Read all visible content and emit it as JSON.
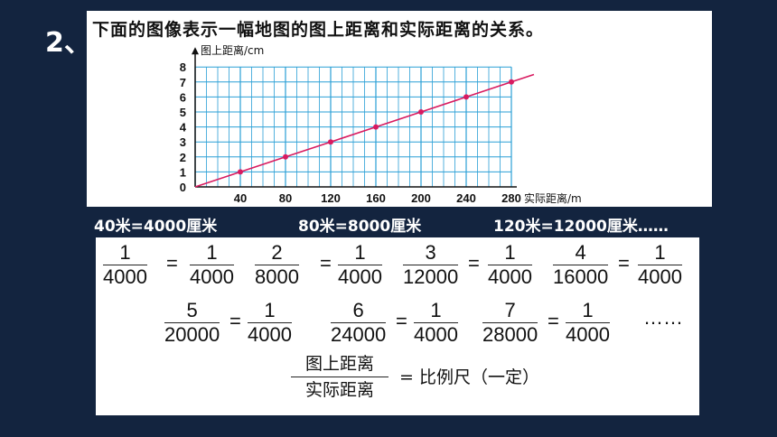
{
  "question_number": "2、",
  "title": "下面的图像表示一幅地图的图上距离和实际距离的关系。",
  "chart_data": {
    "type": "line",
    "ylabel": "图上距离/cm",
    "xlabel": "实际距离/m",
    "x_ticks": [
      "40",
      "80",
      "120",
      "160",
      "200",
      "240",
      "280"
    ],
    "y_ticks": [
      "0",
      "1",
      "2",
      "3",
      "4",
      "5",
      "6",
      "7",
      "8"
    ],
    "xlim": [
      0,
      280
    ],
    "ylim": [
      0,
      8
    ],
    "grid": true,
    "series": [
      {
        "x": [
          0,
          40,
          80,
          120,
          160,
          200,
          240,
          280,
          300
        ],
        "y": [
          0,
          1,
          2,
          3,
          4,
          5,
          6,
          7,
          7.5
        ],
        "markers": [
          40,
          80,
          120,
          160,
          200,
          240,
          280
        ],
        "color": "#d81b60"
      }
    ]
  },
  "conversions": [
    "40米=4000厘米",
    "80米=8000厘米",
    "120米=12000厘米……"
  ],
  "row1": [
    {
      "n": "1",
      "d": "4000"
    },
    {
      "n": "1",
      "d": "4000"
    },
    {
      "n": "2",
      "d": "8000"
    },
    {
      "n": "1",
      "d": "4000"
    },
    {
      "n": "3",
      "d": "12000"
    },
    {
      "n": "1",
      "d": "4000"
    },
    {
      "n": "4",
      "d": "16000"
    },
    {
      "n": "1",
      "d": "4000"
    }
  ],
  "row2": [
    {
      "n": "5",
      "d": "20000"
    },
    {
      "n": "1",
      "d": "4000"
    },
    {
      "n": "6",
      "d": "24000"
    },
    {
      "n": "1",
      "d": "4000"
    },
    {
      "n": "7",
      "d": "28000"
    },
    {
      "n": "1",
      "d": "4000"
    }
  ],
  "equals": "=",
  "ellipsis": "……",
  "word_fraction": {
    "numerator": "图上距离",
    "denominator": "实际距离",
    "result": "= 比例尺（一定）"
  },
  "colors": {
    "background": "#13243f",
    "grid": "#2a9fd6",
    "line": "#d81b60"
  }
}
